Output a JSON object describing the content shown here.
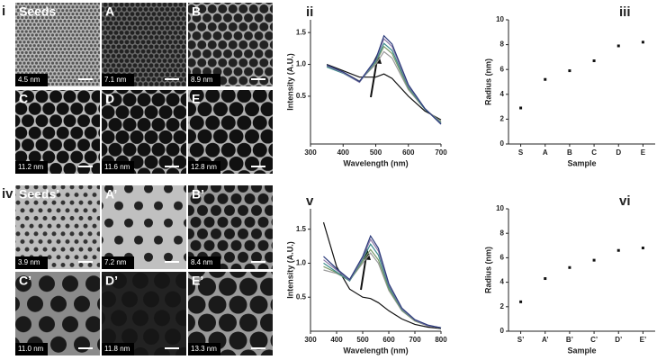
{
  "micrographs": [
    {
      "label": "Seeds",
      "size": "4.5 nm"
    },
    {
      "label": "A",
      "size": "7.1 nm"
    },
    {
      "label": "B",
      "size": "8.9 nm"
    },
    {
      "label": "C",
      "size": "11.2 nm"
    },
    {
      "label": "D",
      "size": "11.6 nm"
    },
    {
      "label": "E",
      "size": "12.8 nm"
    },
    {
      "label": "Seeds’",
      "size": "3.9 nm"
    },
    {
      "label": "A’",
      "size": "7.2 nm"
    },
    {
      "label": "B’",
      "size": "8.4 nm"
    },
    {
      "label": "C’",
      "size": "11.0 nm"
    },
    {
      "label": "D’",
      "size": "11.8 nm"
    },
    {
      "label": "E’",
      "size": "13.3 nm"
    }
  ],
  "panel_labels": [
    "i",
    "iv"
  ],
  "chart_data": [
    {
      "type": "line",
      "panel_label": "ii",
      "x_label": "Wavelength (nm)",
      "y_label": "Intensity (A.U.)",
      "xlim": [
        300,
        700
      ],
      "xticks": [
        300,
        400,
        500,
        600,
        700
      ],
      "ylim": [
        -0.25,
        1.7
      ],
      "yticks": [
        {
          "value": 0.5,
          "label": "0.5"
        },
        {
          "value": 1,
          "label": "1.0"
        },
        {
          "value": 1.5,
          "label": "1.5"
        }
      ],
      "x": [
        350,
        400,
        450,
        500,
        525,
        550,
        600,
        650,
        700
      ],
      "series": [
        {
          "color": "#111111",
          "values": [
            1.0,
            0.9,
            0.8,
            0.8,
            0.85,
            0.78,
            0.5,
            0.27,
            0.13
          ]
        },
        {
          "color": "#9a9a9a",
          "values": [
            0.98,
            0.88,
            0.74,
            1.0,
            1.2,
            1.1,
            0.6,
            0.3,
            0.1
          ]
        },
        {
          "color": "#7a9a6a",
          "values": [
            0.97,
            0.87,
            0.73,
            1.03,
            1.28,
            1.17,
            0.62,
            0.3,
            0.09
          ]
        },
        {
          "color": "#3a8a8a",
          "values": [
            0.96,
            0.86,
            0.72,
            1.05,
            1.33,
            1.22,
            0.64,
            0.3,
            0.08
          ]
        },
        {
          "color": "#8a7aa8",
          "values": [
            0.98,
            0.87,
            0.72,
            1.07,
            1.4,
            1.28,
            0.66,
            0.31,
            0.07
          ]
        },
        {
          "color": "#2a3a7a",
          "values": [
            0.99,
            0.88,
            0.73,
            1.08,
            1.45,
            1.32,
            0.68,
            0.31,
            0.06
          ]
        }
      ]
    },
    {
      "type": "scatter",
      "panel_label": "iii",
      "x_label": "Sample",
      "y_label": "Radius (nm)",
      "categories": [
        "S",
        "A",
        "B",
        "C",
        "D",
        "E"
      ],
      "values": [
        2.9,
        5.2,
        5.9,
        6.7,
        7.9,
        8.2
      ],
      "color": "#111111",
      "ylim": [
        0,
        10
      ],
      "yticks": [
        0,
        2,
        4,
        6,
        8,
        10
      ]
    },
    {
      "type": "line",
      "panel_label": "v",
      "x_label": "Wavelength (nm)",
      "y_label": "Intensity (A.U.)",
      "xlim": [
        300,
        800
      ],
      "xticks": [
        300,
        400,
        500,
        600,
        700,
        800
      ],
      "ylim": [
        0,
        1.8
      ],
      "yticks": [
        {
          "value": 0.5,
          "label": "0.5"
        },
        {
          "value": 1,
          "label": "1.0"
        },
        {
          "value": 1.5,
          "label": "1.5"
        }
      ],
      "x": [
        350,
        400,
        450,
        500,
        530,
        560,
        600,
        650,
        700,
        750,
        800
      ],
      "series": [
        {
          "color": "#111111",
          "values": [
            1.6,
            0.95,
            0.62,
            0.5,
            0.48,
            0.42,
            0.3,
            0.18,
            0.1,
            0.06,
            0.04
          ]
        },
        {
          "color": "#9a9a9a",
          "values": [
            0.9,
            0.85,
            0.75,
            1.0,
            1.15,
            1.0,
            0.6,
            0.3,
            0.15,
            0.08,
            0.05
          ]
        },
        {
          "color": "#7a9a6a",
          "values": [
            0.95,
            0.86,
            0.74,
            1.03,
            1.2,
            1.05,
            0.62,
            0.31,
            0.15,
            0.08,
            0.05
          ]
        },
        {
          "color": "#3a8a8a",
          "values": [
            1.0,
            0.87,
            0.74,
            1.06,
            1.28,
            1.12,
            0.65,
            0.32,
            0.16,
            0.08,
            0.05
          ]
        },
        {
          "color": "#8a7aa8",
          "values": [
            1.05,
            0.9,
            0.75,
            1.08,
            1.35,
            1.18,
            0.68,
            0.33,
            0.16,
            0.08,
            0.05
          ]
        },
        {
          "color": "#2a3a7a",
          "values": [
            1.1,
            0.92,
            0.76,
            1.1,
            1.4,
            1.22,
            0.7,
            0.34,
            0.17,
            0.09,
            0.05
          ]
        }
      ]
    },
    {
      "type": "scatter",
      "panel_label": "vi",
      "x_label": "Sample",
      "y_label": "Radius (nm)",
      "categories": [
        "S’",
        "A’",
        "B’",
        "C’",
        "D’",
        "E’"
      ],
      "values": [
        2.4,
        4.3,
        5.2,
        5.8,
        6.6,
        6.8
      ],
      "color": "#111111",
      "ylim": [
        0,
        10
      ],
      "yticks": [
        0,
        2,
        4,
        6,
        8,
        10
      ]
    }
  ]
}
